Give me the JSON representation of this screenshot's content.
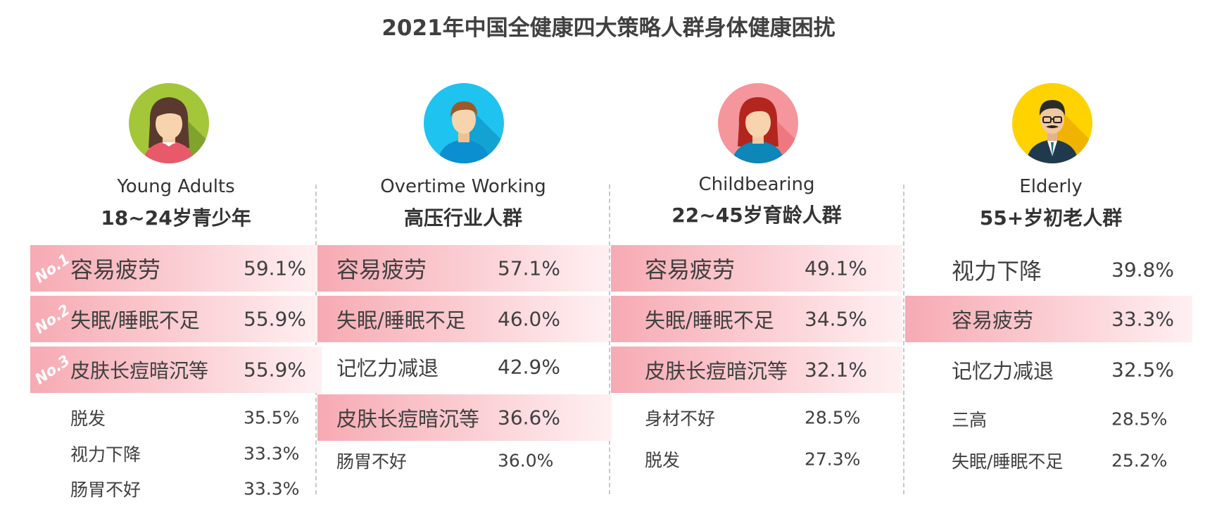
{
  "title": "2021年中国全健康四大策略人群身体健康困扰",
  "colors": {
    "highlight_start": "#f7aab3",
    "highlight_end": "#fff0f2",
    "text": "#404040",
    "divider": "#c8c8c8"
  },
  "groups": [
    {
      "en": "Young Adults",
      "cn": "18~24岁青少年",
      "icon": "young-woman-avatar-icon",
      "items": [
        {
          "rank": "No.1",
          "label": "容易疲劳",
          "value": "59.1%"
        },
        {
          "rank": "No.2",
          "label": "失眠/睡眠不足",
          "value": "55.9%"
        },
        {
          "rank": "No.3",
          "label": "皮肤长痘暗沉等",
          "value": "55.9%"
        },
        {
          "label": "脱发",
          "value": "35.5%"
        },
        {
          "label": "视力下降",
          "value": "33.3%"
        },
        {
          "label": "肠胃不好",
          "value": "33.3%"
        }
      ]
    },
    {
      "en": "Overtime Working",
      "cn": "高压行业人群",
      "icon": "office-worker-avatar-icon",
      "items": [
        {
          "label": "容易疲劳",
          "value": "57.1%"
        },
        {
          "label": "失眠/睡眠不足",
          "value": "46.0%"
        },
        {
          "label": "记忆力减退",
          "value": "42.9%"
        },
        {
          "label": "皮肤长痘暗沉等",
          "value": "36.6%"
        },
        {
          "label": "肠胃不好",
          "value": "36.0%"
        }
      ]
    },
    {
      "en": "Childbearing",
      "cn": "22~45岁育龄人群",
      "icon": "woman-avatar-icon",
      "items": [
        {
          "label": "容易疲劳",
          "value": "49.1%"
        },
        {
          "label": "失眠/睡眠不足",
          "value": "34.5%"
        },
        {
          "label": "皮肤长痘暗沉等",
          "value": "32.1%"
        },
        {
          "label": "身材不好",
          "value": "28.5%"
        },
        {
          "label": "脱发",
          "value": "27.3%"
        }
      ]
    },
    {
      "en": "Elderly",
      "cn": "55+岁初老人群",
      "icon": "elderly-man-avatar-icon",
      "items": [
        {
          "label": "视力下降",
          "value": "39.8%"
        },
        {
          "label": "容易疲劳",
          "value": "33.3%"
        },
        {
          "label": "记忆力减退",
          "value": "32.5%"
        },
        {
          "label": "三高",
          "value": "28.5%"
        },
        {
          "label": "失眠/睡眠不足",
          "value": "25.2%"
        }
      ]
    }
  ],
  "chart_data": {
    "type": "table",
    "title": "2021年中国全健康四大策略人群身体健康困扰",
    "columns": [
      {
        "group": "Young Adults 18~24岁青少年",
        "categories": [
          "容易疲劳",
          "失眠/睡眠不足",
          "皮肤长痘暗沉等",
          "脱发",
          "视力下降",
          "肠胃不好"
        ],
        "values": [
          59.1,
          55.9,
          55.9,
          35.5,
          33.3,
          33.3
        ],
        "highlighted": [
          true,
          true,
          true,
          false,
          false,
          false
        ]
      },
      {
        "group": "Overtime Working 高压行业人群",
        "categories": [
          "容易疲劳",
          "失眠/睡眠不足",
          "记忆力减退",
          "皮肤长痘暗沉等",
          "肠胃不好"
        ],
        "values": [
          57.1,
          46.0,
          42.9,
          36.6,
          36.0
        ],
        "highlighted": [
          true,
          true,
          false,
          true,
          false
        ]
      },
      {
        "group": "Childbearing 22~45岁育龄人群",
        "categories": [
          "容易疲劳",
          "失眠/睡眠不足",
          "皮肤长痘暗沉等",
          "身材不好",
          "脱发"
        ],
        "values": [
          49.1,
          34.5,
          32.1,
          28.5,
          27.3
        ],
        "highlighted": [
          true,
          true,
          true,
          false,
          false
        ]
      },
      {
        "group": "Elderly 55+岁初老人群",
        "categories": [
          "视力下降",
          "容易疲劳",
          "记忆力减退",
          "三高",
          "失眠/睡眠不足"
        ],
        "values": [
          39.8,
          33.3,
          32.5,
          28.5,
          25.2
        ],
        "highlighted": [
          false,
          true,
          false,
          false,
          false
        ]
      }
    ]
  }
}
